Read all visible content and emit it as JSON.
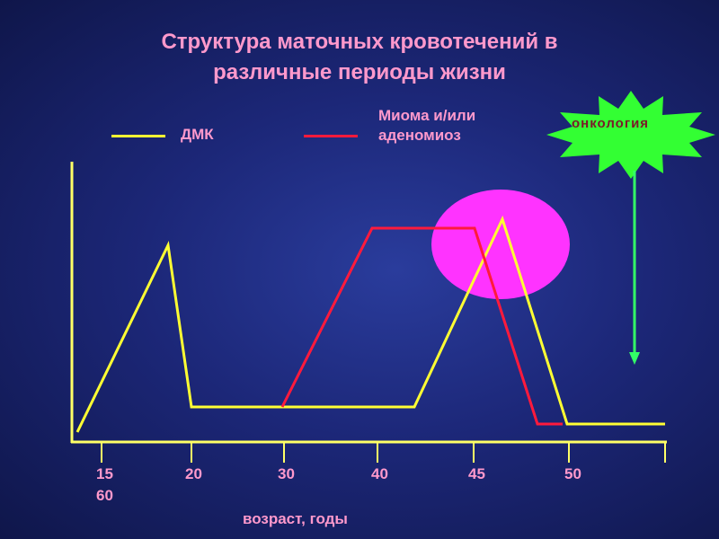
{
  "title": {
    "line1": "Структура маточных кровотечений в",
    "line2": "различные периоды жизни"
  },
  "legend": {
    "dmk": "ДМК",
    "mioma_line1": "Миома и/или",
    "mioma_line2": "аденомиоз"
  },
  "callout": "онкология",
  "x_ticks": [
    "15",
    "20",
    "30",
    "40",
    "45",
    "50"
  ],
  "x_extra_label": "60",
  "xlabel": "возраст, годы",
  "colors": {
    "dmk": "#ffff33",
    "mioma": "#ff1a3c",
    "axis": "#ffff66",
    "highlight": "#ff33ff",
    "burst": "#33ff33",
    "arrow": "#33ff66",
    "text": "#ff99cc"
  },
  "icons": {
    "arrow": "arrow-down-icon",
    "burst": "starburst-icon"
  }
}
